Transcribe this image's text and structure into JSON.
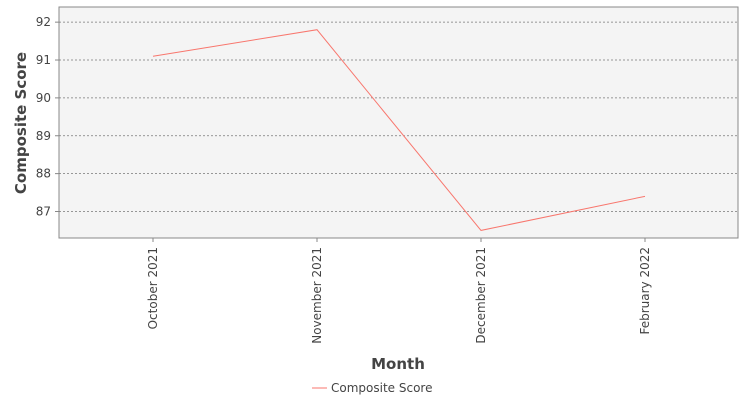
{
  "chart_data": {
    "type": "line",
    "title": "",
    "xlabel": "Month",
    "ylabel": "Composite Score",
    "categories": [
      "October 2021",
      "November 2021",
      "December 2021",
      "February 2022"
    ],
    "series": [
      {
        "name": "Composite Score",
        "values": [
          91.1,
          91.8,
          86.5,
          87.4
        ],
        "color": "#f8766d"
      }
    ],
    "yticks": [
      87,
      88,
      89,
      90,
      91,
      92
    ],
    "ylim": [
      86.3,
      92.4
    ],
    "grid": true,
    "legend_position": "bottom"
  }
}
